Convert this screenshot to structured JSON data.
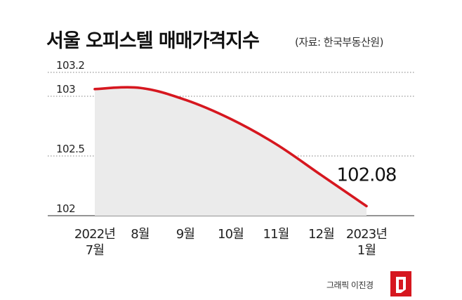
{
  "title": "서울 오피스텔 매매가격지수",
  "source": "(자료: 한국부동산원)",
  "credit": "그래픽 이진경",
  "colors": {
    "line": "#d6171f",
    "area": "#ebebeb",
    "grid": "#555555",
    "text": "#222222"
  },
  "chart_data": {
    "type": "area",
    "categories": [
      [
        "2022년",
        "7월"
      ],
      [
        "8월"
      ],
      [
        "9월"
      ],
      [
        "10월"
      ],
      [
        "11월"
      ],
      [
        "12월"
      ],
      [
        "2023년",
        "1월"
      ]
    ],
    "values": [
      103.06,
      103.07,
      102.97,
      102.81,
      102.6,
      102.34,
      102.08
    ],
    "yticks": [
      102,
      102.5,
      103,
      103.2
    ],
    "ylim": [
      102,
      103.2
    ],
    "grid": "dotted-horizontal",
    "annotation": {
      "index": 6,
      "text": "102.08"
    }
  }
}
